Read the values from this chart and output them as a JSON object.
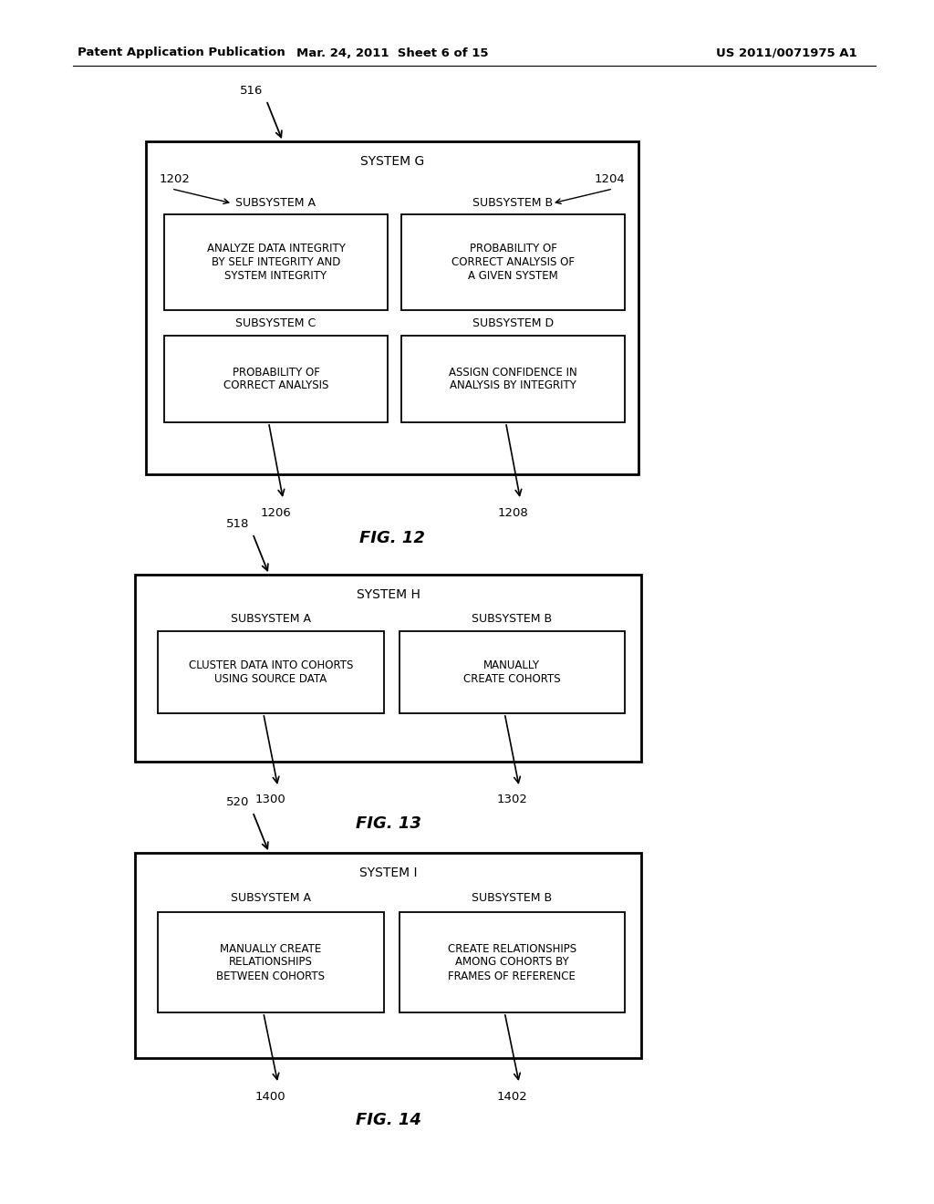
{
  "header_left": "Patent Application Publication",
  "header_mid": "Mar. 24, 2011  Sheet 6 of 15",
  "header_right": "US 2011/0071975 A1",
  "bg_color": "#ffffff",
  "fig12": {
    "outer_label": "516",
    "system_title": "SYSTEM G",
    "subsys_labels": [
      "1202",
      "1204"
    ],
    "subsys_titles_top": [
      "SUBSYSTEM A",
      "SUBSYSTEM B"
    ],
    "subsys_texts_top": [
      "ANALYZE DATA INTEGRITY\nBY SELF INTEGRITY AND\nSYSTEM INTEGRITY",
      "PROBABILITY OF\nCORRECT ANALYSIS OF\nA GIVEN SYSTEM"
    ],
    "subsys_titles_bot": [
      "SUBSYSTEM C",
      "SUBSYSTEM D"
    ],
    "subsys_texts_bot": [
      "PROBABILITY OF\nCORRECT ANALYSIS",
      "ASSIGN CONFIDENCE IN\nANALYSIS BY INTEGRITY"
    ],
    "bot_refs": [
      "1206",
      "1208"
    ],
    "caption": "FIG. 12"
  },
  "fig13": {
    "outer_label": "518",
    "system_title": "SYSTEM H",
    "subsys_titles": [
      "SUBSYSTEM A",
      "SUBSYSTEM B"
    ],
    "subsys_texts": [
      "CLUSTER DATA INTO COHORTS\nUSING SOURCE DATA",
      "MANUALLY\nCREATE COHORTS"
    ],
    "refs": [
      "1300",
      "1302"
    ],
    "caption": "FIG. 13"
  },
  "fig14": {
    "outer_label": "520",
    "system_title": "SYSTEM I",
    "subsys_titles": [
      "SUBSYSTEM A",
      "SUBSYSTEM B"
    ],
    "subsys_texts": [
      "MANUALLY CREATE\nRELATIONSHIPS\nBETWEEN COHORTS",
      "CREATE RELATIONSHIPS\nAMONG COHORTS BY\nFRAMES OF REFERENCE"
    ],
    "refs": [
      "1400",
      "1402"
    ],
    "caption": "FIG. 14"
  }
}
